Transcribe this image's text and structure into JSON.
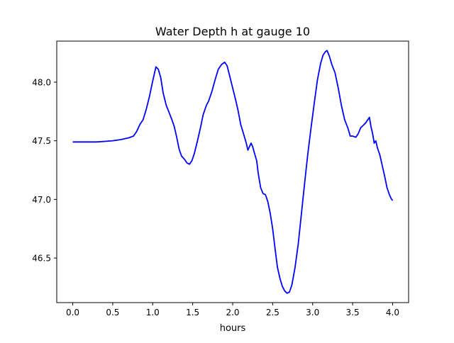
{
  "chart_data": {
    "type": "line",
    "title": "Water Depth h at gauge 10",
    "xlabel": "hours",
    "ylabel": "",
    "xlim": [
      -0.2,
      4.2
    ],
    "ylim": [
      46.12,
      48.35
    ],
    "grid": false,
    "legend": "none",
    "x_ticks": [
      0.0,
      0.5,
      1.0,
      1.5,
      2.0,
      2.5,
      3.0,
      3.5,
      4.0
    ],
    "x_tick_labels": [
      "0.0",
      "0.5",
      "1.0",
      "1.5",
      "2.0",
      "2.5",
      "3.0",
      "3.5",
      "4.0"
    ],
    "y_ticks": [
      46.5,
      47.0,
      47.5,
      48.0
    ],
    "y_tick_labels": [
      "46.5",
      "47.0",
      "47.5",
      "48.0"
    ],
    "series": [
      {
        "color": "#0000ff",
        "points": [
          [
            0.0,
            47.49
          ],
          [
            0.1,
            47.49
          ],
          [
            0.2,
            47.49
          ],
          [
            0.3,
            47.49
          ],
          [
            0.4,
            47.495
          ],
          [
            0.5,
            47.5
          ],
          [
            0.6,
            47.51
          ],
          [
            0.7,
            47.525
          ],
          [
            0.76,
            47.54
          ],
          [
            0.8,
            47.58
          ],
          [
            0.84,
            47.64
          ],
          [
            0.88,
            47.68
          ],
          [
            0.92,
            47.77
          ],
          [
            0.96,
            47.88
          ],
          [
            1.0,
            48.01
          ],
          [
            1.04,
            48.13
          ],
          [
            1.07,
            48.11
          ],
          [
            1.1,
            48.04
          ],
          [
            1.13,
            47.91
          ],
          [
            1.17,
            47.8
          ],
          [
            1.2,
            47.75
          ],
          [
            1.24,
            47.68
          ],
          [
            1.27,
            47.62
          ],
          [
            1.3,
            47.53
          ],
          [
            1.33,
            47.43
          ],
          [
            1.36,
            47.37
          ],
          [
            1.4,
            47.34
          ],
          [
            1.43,
            47.31
          ],
          [
            1.46,
            47.3
          ],
          [
            1.49,
            47.33
          ],
          [
            1.52,
            47.39
          ],
          [
            1.56,
            47.5
          ],
          [
            1.6,
            47.62
          ],
          [
            1.63,
            47.72
          ],
          [
            1.67,
            47.8
          ],
          [
            1.7,
            47.84
          ],
          [
            1.74,
            47.92
          ],
          [
            1.78,
            48.02
          ],
          [
            1.82,
            48.11
          ],
          [
            1.86,
            48.15
          ],
          [
            1.9,
            48.17
          ],
          [
            1.93,
            48.14
          ],
          [
            1.96,
            48.06
          ],
          [
            2.0,
            47.95
          ],
          [
            2.04,
            47.84
          ],
          [
            2.07,
            47.75
          ],
          [
            2.1,
            47.64
          ],
          [
            2.14,
            47.55
          ],
          [
            2.17,
            47.48
          ],
          [
            2.19,
            47.42
          ],
          [
            2.21,
            47.45
          ],
          [
            2.23,
            47.48
          ],
          [
            2.25,
            47.45
          ],
          [
            2.27,
            47.4
          ],
          [
            2.3,
            47.33
          ],
          [
            2.32,
            47.22
          ],
          [
            2.35,
            47.1
          ],
          [
            2.38,
            47.05
          ],
          [
            2.41,
            47.04
          ],
          [
            2.44,
            46.98
          ],
          [
            2.47,
            46.88
          ],
          [
            2.5,
            46.75
          ],
          [
            2.53,
            46.58
          ],
          [
            2.56,
            46.42
          ],
          [
            2.59,
            46.33
          ],
          [
            2.62,
            46.26
          ],
          [
            2.65,
            46.22
          ],
          [
            2.68,
            46.2
          ],
          [
            2.71,
            46.21
          ],
          [
            2.74,
            46.27
          ],
          [
            2.78,
            46.42
          ],
          [
            2.82,
            46.62
          ],
          [
            2.86,
            46.88
          ],
          [
            2.9,
            47.14
          ],
          [
            2.94,
            47.39
          ],
          [
            2.98,
            47.61
          ],
          [
            3.02,
            47.82
          ],
          [
            3.06,
            48.02
          ],
          [
            3.1,
            48.16
          ],
          [
            3.13,
            48.23
          ],
          [
            3.16,
            48.26
          ],
          [
            3.18,
            48.27
          ],
          [
            3.21,
            48.22
          ],
          [
            3.24,
            48.15
          ],
          [
            3.28,
            48.08
          ],
          [
            3.32,
            47.95
          ],
          [
            3.36,
            47.8
          ],
          [
            3.4,
            47.68
          ],
          [
            3.44,
            47.61
          ],
          [
            3.47,
            47.54
          ],
          [
            3.5,
            47.54
          ],
          [
            3.54,
            47.53
          ],
          [
            3.57,
            47.56
          ],
          [
            3.6,
            47.61
          ],
          [
            3.63,
            47.63
          ],
          [
            3.66,
            47.65
          ],
          [
            3.69,
            47.68
          ],
          [
            3.71,
            47.7
          ],
          [
            3.73,
            47.62
          ],
          [
            3.75,
            47.56
          ],
          [
            3.77,
            47.48
          ],
          [
            3.79,
            47.5
          ],
          [
            3.81,
            47.44
          ],
          [
            3.84,
            47.38
          ],
          [
            3.87,
            47.29
          ],
          [
            3.9,
            47.2
          ],
          [
            3.93,
            47.1
          ],
          [
            3.96,
            47.04
          ],
          [
            3.98,
            47.01
          ],
          [
            4.0,
            46.99
          ]
        ]
      }
    ]
  }
}
